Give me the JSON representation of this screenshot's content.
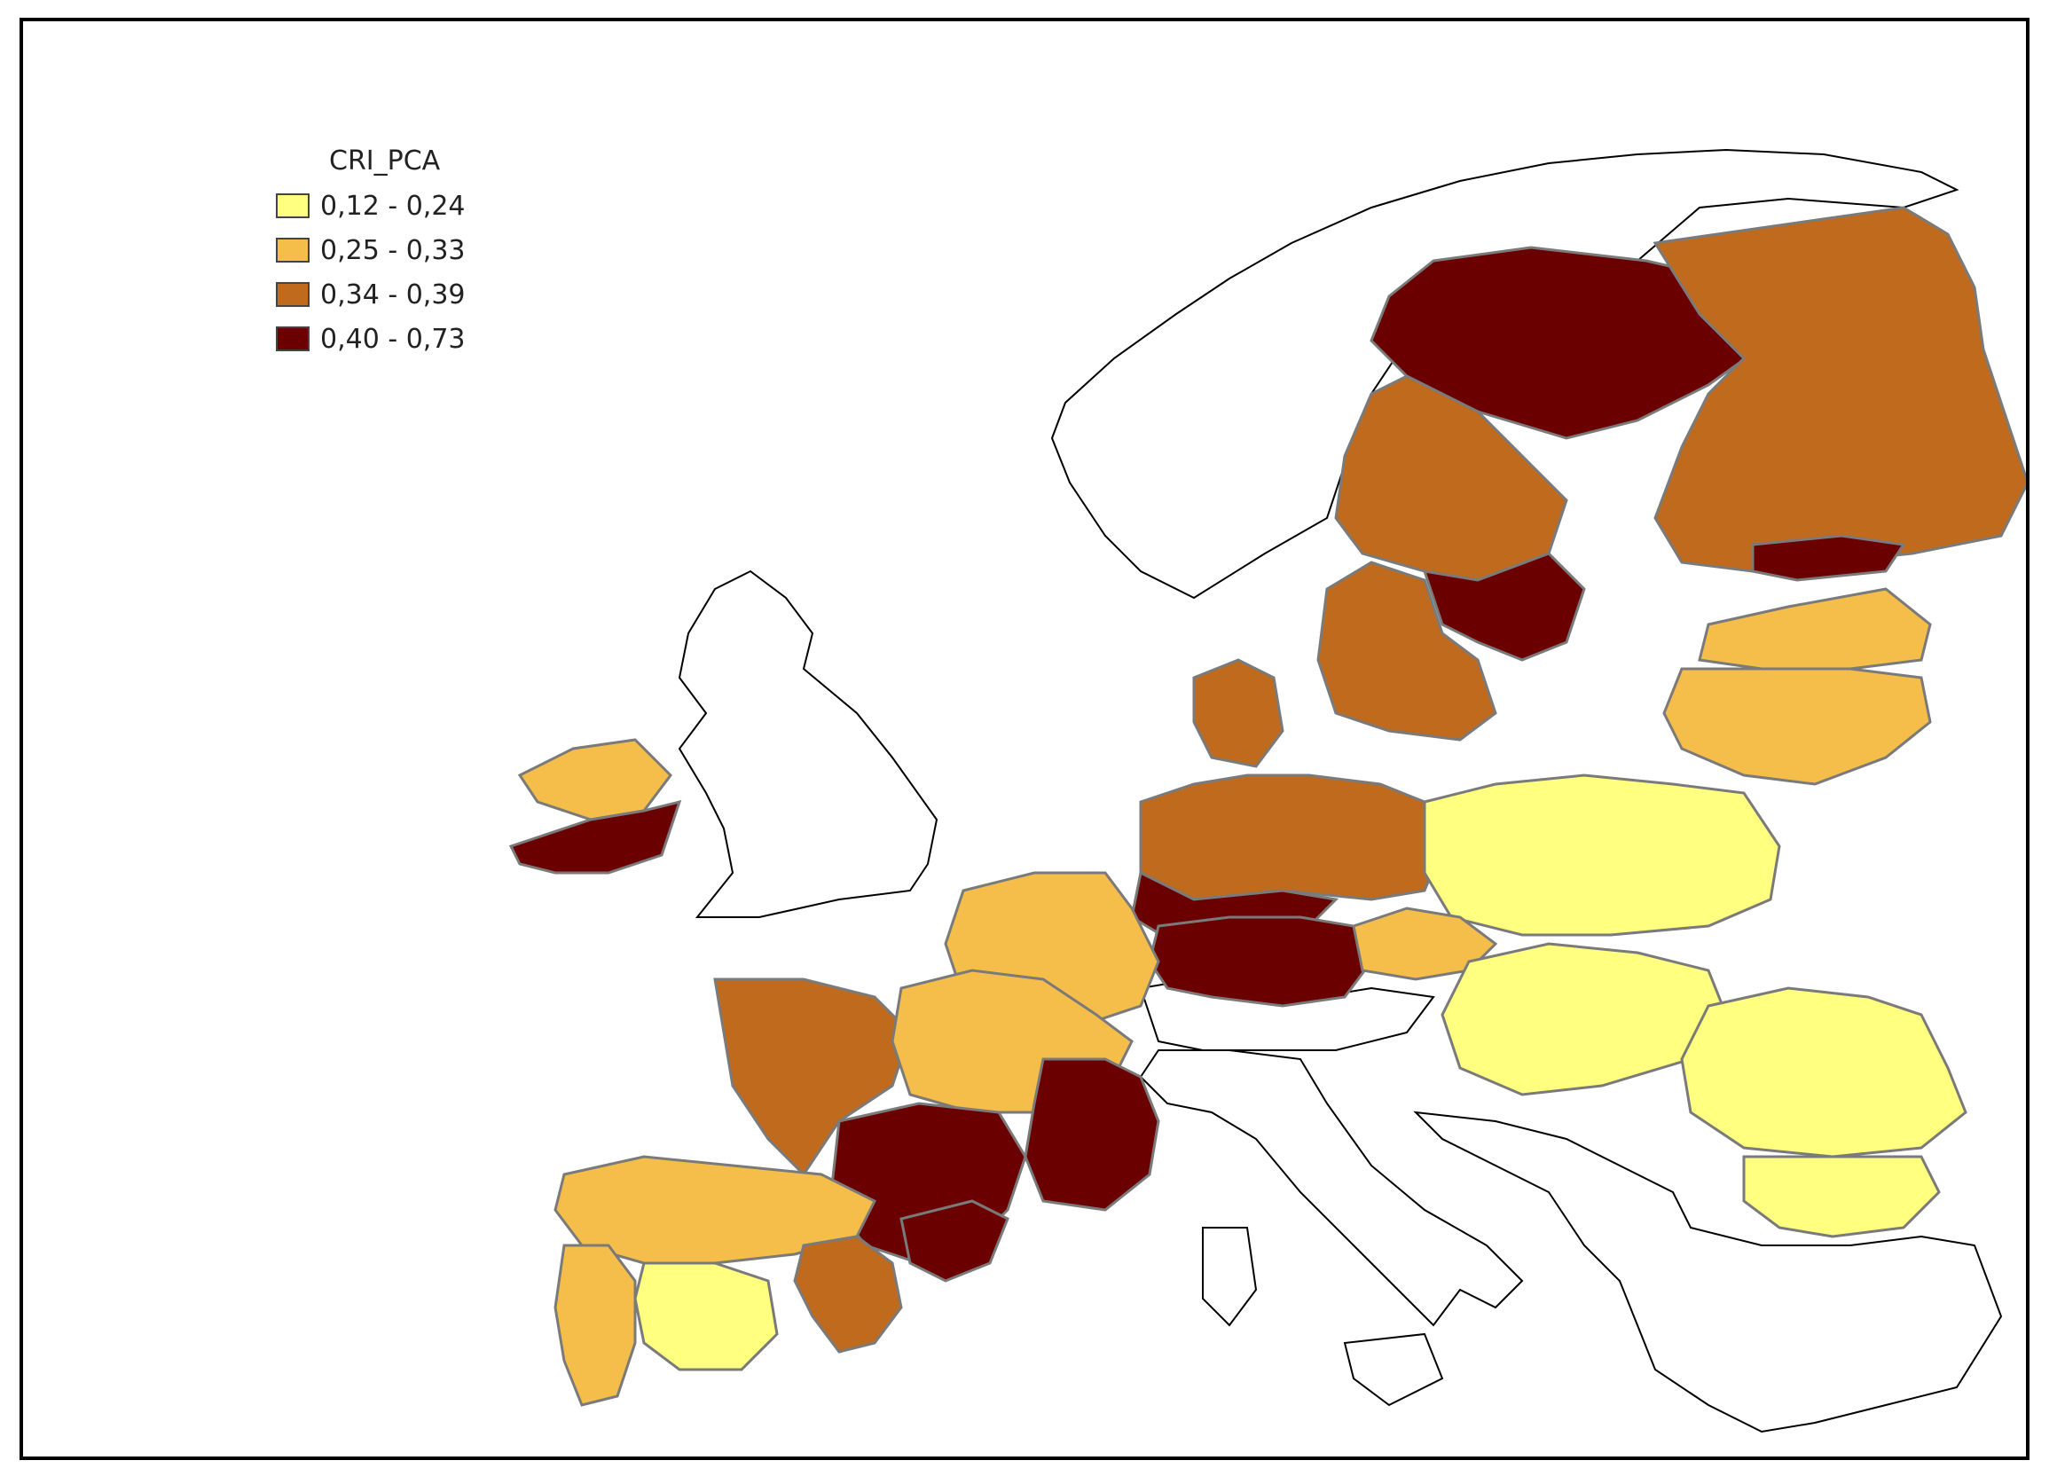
{
  "legend": {
    "title": "CRI_PCA",
    "classes": [
      {
        "label": "0,12 - 0,24",
        "color": "#ffff80"
      },
      {
        "label": "0,25 - 0,33",
        "color": "#f5be4b"
      },
      {
        "label": "0,34 - 0,39",
        "color": "#c06a1e"
      },
      {
        "label": "0,40 - 0,73",
        "color": "#6b0000"
      }
    ]
  },
  "colors": {
    "no_data": "#ffffff",
    "region_border": "#7a7a7a",
    "coast_outline": "#000000"
  },
  "regions": [
    {
      "name": "iceland-excluded",
      "cls": "none"
    },
    {
      "name": "norway",
      "cls": "none"
    },
    {
      "name": "sweden-north",
      "cls": 4
    },
    {
      "name": "sweden-central",
      "cls": 3
    },
    {
      "name": "sweden-south-east",
      "cls": 4
    },
    {
      "name": "sweden-south",
      "cls": 3
    },
    {
      "name": "finland",
      "cls": 3
    },
    {
      "name": "finland-south",
      "cls": 4
    },
    {
      "name": "baltics-north",
      "cls": 2
    },
    {
      "name": "baltics-south",
      "cls": 2
    },
    {
      "name": "ireland-north",
      "cls": 2
    },
    {
      "name": "ireland-south",
      "cls": 4
    },
    {
      "name": "united-kingdom",
      "cls": "none"
    },
    {
      "name": "denmark",
      "cls": 3
    },
    {
      "name": "germany-north",
      "cls": 3
    },
    {
      "name": "germany-central",
      "cls": 4
    },
    {
      "name": "germany-south",
      "cls": 4
    },
    {
      "name": "poland",
      "cls": 1
    },
    {
      "name": "czechia",
      "cls": 2
    },
    {
      "name": "hungary-slovakia",
      "cls": 1
    },
    {
      "name": "romania",
      "cls": 1
    },
    {
      "name": "bulgaria",
      "cls": 1
    },
    {
      "name": "france-north",
      "cls": 2
    },
    {
      "name": "france-west",
      "cls": 3
    },
    {
      "name": "france-centre",
      "cls": 2
    },
    {
      "name": "france-south-east",
      "cls": 4
    },
    {
      "name": "france-south-west",
      "cls": 4
    },
    {
      "name": "spain-north",
      "cls": 2
    },
    {
      "name": "spain-central",
      "cls": 1
    },
    {
      "name": "spain-east",
      "cls": 3
    },
    {
      "name": "spain-catalonia",
      "cls": 4
    },
    {
      "name": "portugal",
      "cls": 2
    },
    {
      "name": "italy",
      "cls": "none"
    },
    {
      "name": "alps",
      "cls": "none"
    },
    {
      "name": "balkans-greece",
      "cls": "none"
    }
  ]
}
